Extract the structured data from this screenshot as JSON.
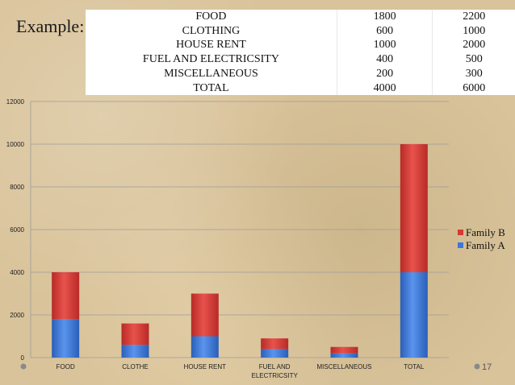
{
  "slide": {
    "example_label": "Example:",
    "page_number": "17"
  },
  "table": {
    "rows": [
      [
        "FOOD",
        "1800",
        "2200"
      ],
      [
        "CLOTHING",
        "600",
        "1000"
      ],
      [
        "HOUSE RENT",
        "1000",
        "2000"
      ],
      [
        "FUEL AND ELECTRICSITY",
        "400",
        "500"
      ],
      [
        "MISCELLANEOUS",
        "200",
        "300"
      ],
      [
        "TOTAL",
        "4000",
        "6000"
      ]
    ]
  },
  "chart_data": {
    "type": "bar",
    "stacked": true,
    "categories": [
      [
        "FOOD"
      ],
      [
        "CLOTHE"
      ],
      [
        "HOUSE RENT"
      ],
      [
        "FUEL AND",
        "ELECTRICSITY"
      ],
      [
        "MISCELLANEOUS"
      ],
      [
        "TOTAL"
      ]
    ],
    "series": [
      {
        "name": "Family A",
        "values": [
          1800,
          600,
          1000,
          400,
          200,
          4000
        ],
        "color": "#3b78d8"
      },
      {
        "name": "Family B",
        "values": [
          2200,
          1000,
          2000,
          500,
          300,
          6000
        ],
        "color": "#d43a34"
      }
    ],
    "yticks": [
      0,
      2000,
      4000,
      6000,
      8000,
      10000,
      12000
    ],
    "ylim": [
      0,
      12000
    ],
    "grid": true,
    "legend": "right",
    "legend_order": [
      "Family B",
      "Family A"
    ]
  }
}
